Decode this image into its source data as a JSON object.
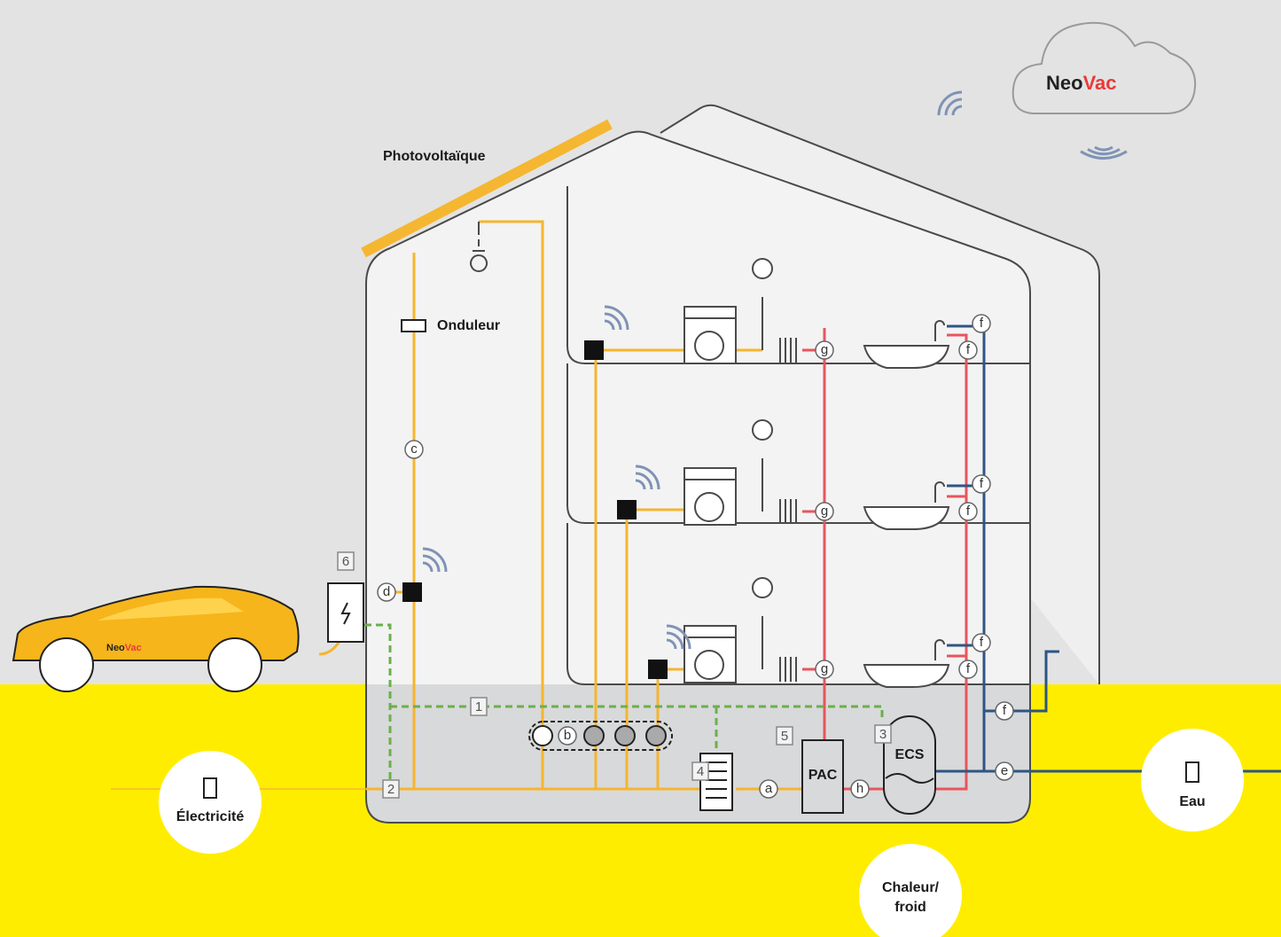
{
  "logo": {
    "neo": "Neo",
    "vac": "Vac"
  },
  "car_logo": {
    "neo": "Neo",
    "vac": "Vac"
  },
  "labels": {
    "photovoltaic": "Photovoltaïque",
    "inverter": "Onduleur",
    "heat_pump": "PAC",
    "hot_water": "ECS"
  },
  "markers": [
    "a",
    "b",
    "c",
    "d",
    "e",
    "f",
    "f",
    "f",
    "f",
    "f",
    "f",
    "f",
    "g",
    "g",
    "g",
    "h"
  ],
  "boxes": [
    "1",
    "2",
    "3",
    "4",
    "5",
    "6"
  ],
  "utilities": {
    "electricity": "Électricité",
    "water": "Eau",
    "heat": [
      "Chaleur/",
      "froid"
    ]
  }
}
